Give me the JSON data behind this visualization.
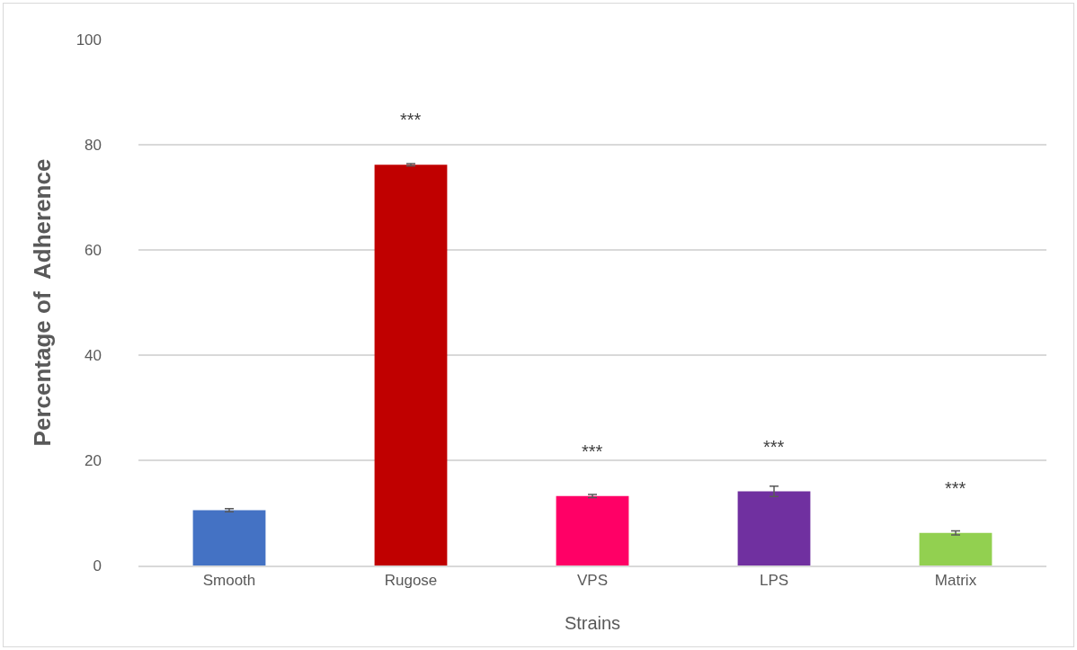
{
  "chart_data": {
    "type": "bar",
    "xlabel": "Strains",
    "ylabel": "Percentage of  Adherence",
    "categories": [
      "Smooth",
      "Rugose",
      "VPS",
      "LPS",
      "Matrix"
    ],
    "values": [
      10.5,
      76.2,
      13.2,
      14.1,
      6.2
    ],
    "colors": [
      "#4472c4",
      "#c00000",
      "#ff0066",
      "#7030a0",
      "#92d050"
    ],
    "errors": [
      0.3,
      0.2,
      0.3,
      1.0,
      0.4
    ],
    "value_labels": [
      null,
      "***",
      "***",
      "***",
      "***"
    ],
    "ylim": [
      0,
      100
    ],
    "yticks": [
      0,
      20,
      40,
      60,
      80,
      100
    ],
    "grid": "y"
  }
}
